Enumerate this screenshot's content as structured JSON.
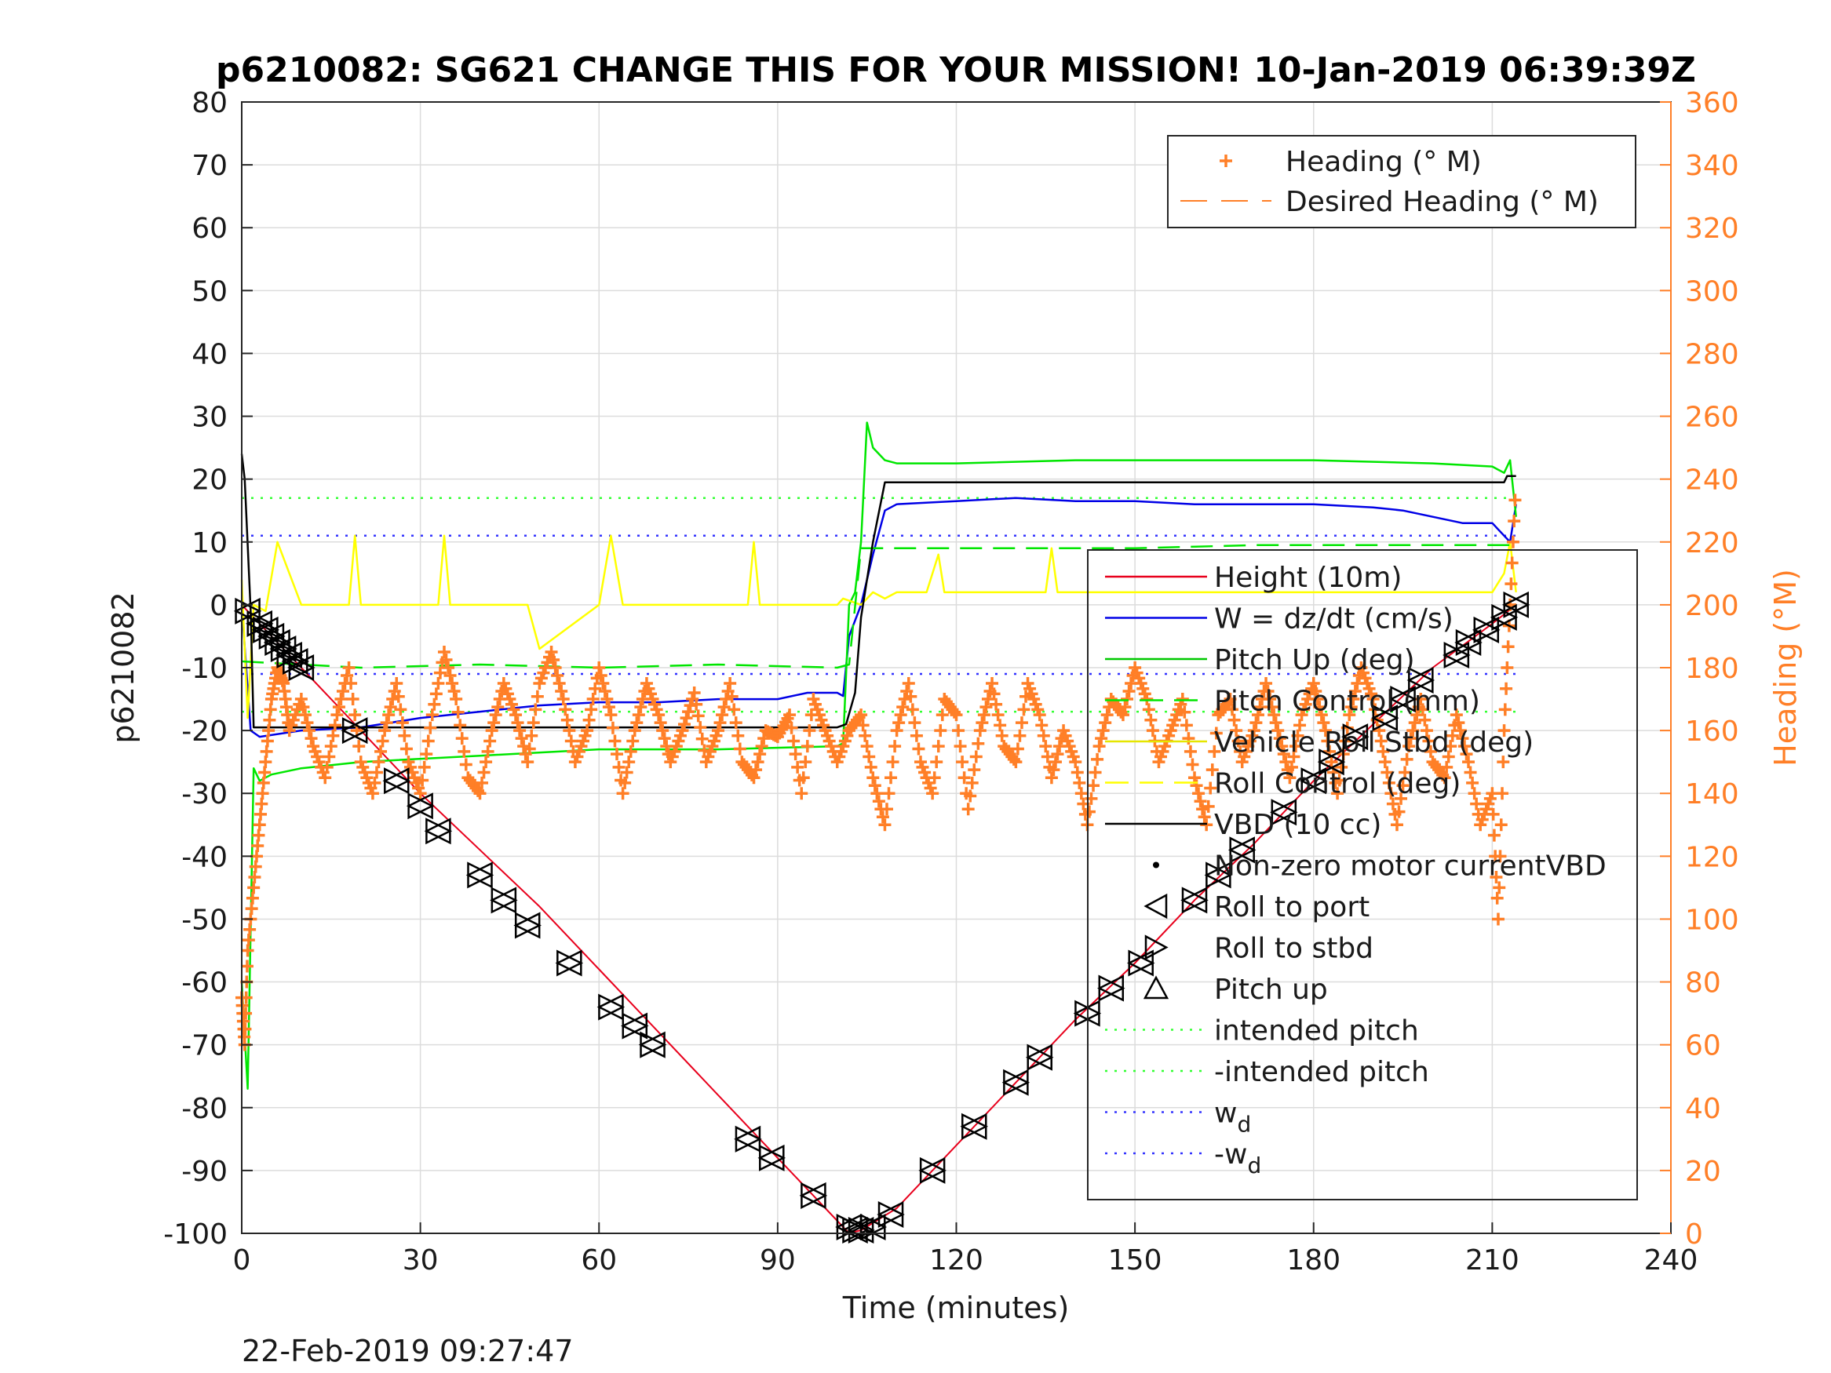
{
  "chart_data": {
    "type": "line",
    "title": "p6210082: SG621 CHANGE THIS FOR YOUR MISSION! 10-Jan-2019 06:39:39Z",
    "xlabel": "Time (minutes)",
    "ylabel": "p6210082",
    "ylabel_right": "Heading (°M)",
    "timestamp": "22-Feb-2019 09:27:47",
    "xlim": [
      0,
      240
    ],
    "ylim": [
      -100,
      80
    ],
    "ylim_right": [
      0,
      360
    ],
    "grid": true,
    "x_ticks": [
      "0",
      "30",
      "60",
      "90",
      "120",
      "150",
      "180",
      "210",
      "240"
    ],
    "y_ticks": [
      "80",
      "70",
      "60",
      "50",
      "40",
      "30",
      "20",
      "10",
      "0",
      "-10",
      "-20",
      "-30",
      "-40",
      "-50",
      "-60",
      "-70",
      "-80",
      "-90",
      "-100"
    ],
    "y_right_ticks": [
      "360",
      "340",
      "320",
      "300",
      "280",
      "260",
      "240",
      "220",
      "200",
      "180",
      "160",
      "140",
      "120",
      "100",
      "80",
      "60",
      "40",
      "20",
      "0"
    ],
    "colors": {
      "height": "#e8001c",
      "w": "#0000e6",
      "pitch": "#00e600",
      "roll": "#ffff00",
      "vbd": "#000000",
      "heading": "#ff7f27",
      "intended_pitch": "#33ff33",
      "wd": "#3333ff"
    },
    "legend_top": {
      "position": "top-right",
      "entries": [
        {
          "label": "Heading (° M)",
          "marker": "plus",
          "color": "#ff7f27"
        },
        {
          "label": "Desired Heading (° M)",
          "marker": "dash",
          "color": "#ff7f27"
        }
      ]
    },
    "legend_main": {
      "position": "right",
      "entries": [
        {
          "label": "Height (10m)",
          "marker": "line",
          "color": "#e8001c"
        },
        {
          "label": "W = dz/dt (cm/s)",
          "marker": "line",
          "color": "#0000e6"
        },
        {
          "label": "Pitch Up (deg)",
          "marker": "line",
          "color": "#00c800"
        },
        {
          "label": "Pitch Control (mm)",
          "marker": "dashline",
          "color": "#00e600"
        },
        {
          "label": "Vehicle Roll Stbd (deg)",
          "marker": "line",
          "color": "#e6e600"
        },
        {
          "label": "Roll Control (deg)",
          "marker": "dashline",
          "color": "#ffff00"
        },
        {
          "label": "VBD (10 cc)",
          "marker": "line",
          "color": "#000000"
        },
        {
          "label": "Non-zero motor currentVBD",
          "marker": "dot",
          "color": "#000000"
        },
        {
          "label": "Roll to port",
          "marker": "tri-left",
          "color": "#000000"
        },
        {
          "label": "Roll to stbd",
          "marker": "tri-right",
          "color": "#000000"
        },
        {
          "label": "Pitch up",
          "marker": "tri-up",
          "color": "#000000"
        },
        {
          "label": "intended pitch",
          "marker": "dotline",
          "color": "#33ff33"
        },
        {
          "label": "-intended pitch",
          "marker": "dotline",
          "color": "#33ff33"
        },
        {
          "label": "w",
          "sub": "d",
          "marker": "dotline",
          "color": "#3333ff"
        },
        {
          "label": "-w",
          "sub": "d",
          "marker": "dotline",
          "color": "#3333ff"
        }
      ]
    },
    "series": [
      {
        "name": "Height (10m)",
        "x": [
          0,
          1,
          10,
          20,
          30,
          40,
          50,
          60,
          70,
          80,
          90,
          100,
          102,
          104,
          110,
          120,
          130,
          140,
          150,
          160,
          170,
          180,
          190,
          200,
          210,
          214
        ],
        "y": [
          0,
          -1,
          -10,
          -20,
          -30,
          -39,
          -48,
          -58,
          -68,
          -78,
          -88,
          -98,
          -100,
          -99.5,
          -96,
          -86,
          -76,
          -66,
          -57,
          -47,
          -38,
          -28,
          -19,
          -10,
          -3,
          0
        ]
      },
      {
        "name": "W = dz/dt (cm/s)",
        "x": [
          0,
          1.5,
          3,
          10,
          20,
          30,
          40,
          50,
          60,
          70,
          80,
          90,
          95,
          100,
          101,
          102,
          104,
          106,
          108,
          110,
          120,
          130,
          140,
          150,
          160,
          170,
          180,
          190,
          195,
          200,
          205,
          210,
          212,
          213,
          214
        ],
        "y": [
          0,
          -20,
          -21,
          -20,
          -19.5,
          -18,
          -17,
          -16,
          -15.5,
          -15.5,
          -15,
          -15,
          -14,
          -14,
          -14.5,
          -5,
          0,
          8,
          15,
          16,
          16.5,
          17,
          16.5,
          16.5,
          16,
          16,
          16,
          15.5,
          15,
          14,
          13,
          13,
          11,
          10,
          16
        ]
      },
      {
        "name": "Pitch Up (deg)",
        "x": [
          0,
          1,
          2,
          3,
          5,
          10,
          20,
          40,
          60,
          80,
          100,
          101,
          102,
          103,
          104,
          105,
          106,
          108,
          110,
          120,
          140,
          160,
          180,
          200,
          210,
          212,
          213,
          214
        ],
        "y": [
          -60,
          -77,
          -26,
          -28,
          -27,
          -26,
          -25,
          -24,
          -23,
          -23,
          -22.5,
          -22,
          0,
          2,
          10,
          29,
          25,
          23,
          22.5,
          22.5,
          23,
          23,
          23,
          22.5,
          22,
          21,
          23,
          14
        ]
      },
      {
        "name": "Vehicle Roll Stbd (deg)",
        "x": [
          0,
          1,
          2,
          4,
          6,
          10,
          18,
          19,
          20,
          30,
          33,
          34,
          35,
          40,
          48,
          50,
          60,
          62,
          64,
          70,
          85,
          86,
          87,
          90,
          100,
          101,
          104,
          106,
          108,
          110,
          115,
          117,
          118,
          120,
          130,
          135,
          136,
          137,
          140,
          150,
          160,
          170,
          180,
          190,
          200,
          210,
          212,
          213,
          214
        ],
        "y": [
          4,
          -18,
          0,
          -1,
          10,
          0,
          0,
          11,
          0,
          0,
          0,
          11,
          0,
          0,
          0,
          -7,
          0,
          11,
          0,
          0,
          0,
          10,
          0,
          0,
          0,
          1,
          0,
          2,
          1,
          2,
          2,
          8,
          2,
          2,
          2,
          2,
          9,
          2,
          2,
          2,
          2,
          2,
          2,
          2,
          2,
          2,
          5,
          10,
          2
        ]
      },
      {
        "name": "Pitch Control (mm)",
        "x": [
          0,
          10,
          20,
          40,
          60,
          80,
          100,
          102,
          104,
          110,
          130,
          150,
          170,
          190,
          210,
          214
        ],
        "y": [
          -9,
          -9.5,
          -10,
          -9.5,
          -10,
          -9.5,
          -10,
          -9.5,
          9,
          9,
          9,
          9,
          9.5,
          9.5,
          9.5,
          9.5
        ]
      },
      {
        "name": "VBD (10 cc)",
        "x": [
          0,
          0.5,
          1.5,
          2,
          10,
          50,
          100,
          101.5,
          103,
          104,
          106,
          108,
          110,
          150,
          210,
          212,
          212.5,
          214
        ],
        "y": [
          24,
          20,
          -1,
          -19.5,
          -19.5,
          -19.5,
          -19.5,
          -19,
          -14,
          -2,
          10,
          19.5,
          19.5,
          19.5,
          19.5,
          19.5,
          20.5,
          20.5
        ]
      },
      {
        "name": "intended pitch",
        "x": [
          0,
          214
        ],
        "y": [
          17,
          17
        ]
      },
      {
        "name": "-intended pitch",
        "x": [
          0,
          214
        ],
        "y": [
          -17,
          -17
        ]
      },
      {
        "name": "w_d",
        "x": [
          0,
          214
        ],
        "y": [
          11,
          11
        ]
      },
      {
        "name": "-w_d",
        "x": [
          0,
          214
        ],
        "y": [
          -11,
          -11
        ]
      }
    ],
    "heading_right": {
      "name": "Heading (° M)",
      "x": [
        0,
        0.5,
        1,
        2,
        3,
        4,
        5,
        6,
        7,
        8,
        10,
        12,
        14,
        16,
        18,
        20,
        22,
        24,
        26,
        28,
        30,
        32,
        34,
        36,
        38,
        40,
        42,
        44,
        46,
        48,
        50,
        52,
        54,
        56,
        58,
        60,
        62,
        64,
        66,
        68,
        70,
        72,
        74,
        76,
        78,
        80,
        82,
        84,
        86,
        88,
        90,
        92,
        94,
        96,
        98,
        100,
        102,
        104,
        106,
        108,
        110,
        112,
        114,
        116,
        118,
        120,
        122,
        124,
        126,
        128,
        130,
        132,
        134,
        136,
        138,
        140,
        142,
        144,
        146,
        148,
        150,
        152,
        154,
        156,
        158,
        160,
        162,
        164,
        166,
        168,
        170,
        172,
        174,
        176,
        178,
        180,
        182,
        184,
        186,
        188,
        190,
        192,
        194,
        196,
        198,
        200,
        202,
        204,
        206,
        208,
        210,
        211,
        212,
        213,
        214
      ],
      "y": [
        75,
        60,
        90,
        110,
        130,
        150,
        170,
        180,
        175,
        160,
        170,
        155,
        145,
        165,
        180,
        150,
        140,
        160,
        175,
        150,
        140,
        165,
        185,
        170,
        145,
        140,
        160,
        175,
        165,
        150,
        175,
        185,
        170,
        150,
        160,
        180,
        165,
        140,
        160,
        175,
        165,
        150,
        160,
        172,
        150,
        160,
        175,
        150,
        145,
        160,
        158,
        165,
        140,
        170,
        160,
        150,
        160,
        165,
        145,
        130,
        160,
        175,
        150,
        140,
        170,
        165,
        135,
        160,
        175,
        155,
        150,
        175,
        165,
        145,
        160,
        150,
        130,
        155,
        170,
        165,
        180,
        170,
        150,
        160,
        170,
        145,
        130,
        165,
        170,
        150,
        160,
        175,
        160,
        145,
        165,
        175,
        160,
        140,
        165,
        180,
        170,
        150,
        130,
        155,
        170,
        150,
        145,
        165,
        150,
        130,
        140,
        100,
        160,
        200,
        240
      ]
    },
    "roll_markers": {
      "x": [
        1,
        3,
        4,
        5,
        6,
        7,
        8,
        9,
        10,
        19,
        26,
        30,
        33,
        40,
        44,
        48,
        55,
        62,
        66,
        69,
        85,
        89,
        96,
        102,
        103,
        104,
        106,
        109,
        116,
        123,
        130,
        134,
        142,
        146,
        151,
        160,
        164,
        168,
        175,
        180,
        183,
        187,
        192,
        195,
        198,
        204,
        206,
        209,
        212,
        214
      ],
      "y": [
        -1,
        -3,
        -4,
        -5,
        -6,
        -7,
        -8,
        -9,
        -10,
        -20,
        -28,
        -32,
        -36,
        -43,
        -47,
        -51,
        -57,
        -64,
        -67,
        -70,
        -85,
        -88,
        -94,
        -99,
        -99.5,
        -99.5,
        -99,
        -97,
        -90,
        -83,
        -76,
        -72,
        -65,
        -61,
        -57,
        -47,
        -43,
        -39,
        -33,
        -28,
        -25,
        -21,
        -18,
        -15,
        -12,
        -8,
        -6,
        -4,
        -2,
        0
      ]
    }
  }
}
